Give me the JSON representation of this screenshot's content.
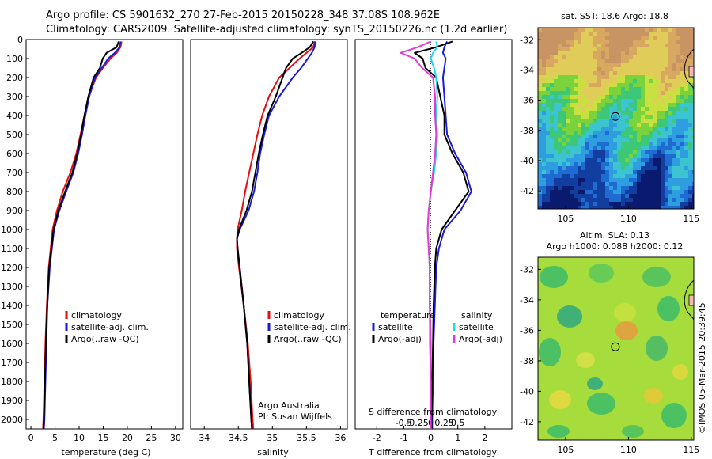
{
  "header": {
    "line1": "Argo profile: CS 5901632_270 27-Feb-2015 20150228_348 37.08S 108.962E",
    "line2": "Climatology: CARS2009. Satellite-adjusted climatology: synTS_20150226.nc (1.2d earlier)"
  },
  "colors": {
    "climatology": "#e01010",
    "satellite": "#1a1adc",
    "argo": "#000000",
    "satellite_salinity": "#22d8e8",
    "argo_salinity": "#e23ad6"
  },
  "depth_axis": {
    "ylim": [
      0,
      2050
    ],
    "ticks": [
      0,
      100,
      200,
      300,
      400,
      500,
      600,
      700,
      800,
      900,
      1000,
      1100,
      1200,
      1300,
      1400,
      1500,
      1600,
      1700,
      1800,
      1900,
      2000
    ]
  },
  "chart_data": [
    {
      "type": "line",
      "name": "temperature",
      "xlabel": "temperature (deg C)",
      "xlim": [
        -1,
        31.5
      ],
      "xticks": [
        0,
        5,
        10,
        15,
        20,
        25,
        30
      ],
      "legend": [
        "climatology",
        "satellite-adj. clim.",
        "Argo(..raw -QC)"
      ],
      "depth": [
        10,
        40,
        70,
        100,
        150,
        200,
        300,
        400,
        500,
        600,
        700,
        800,
        900,
        1000,
        1200,
        1400,
        1600,
        1800,
        2000,
        2050
      ],
      "series": [
        {
          "name": "climatology",
          "values": [
            18.8,
            18.6,
            17.8,
            16.5,
            14.9,
            13.5,
            12.0,
            11.1,
            10.3,
            9.4,
            8.2,
            6.6,
            5.4,
            4.5,
            3.7,
            3.3,
            3.0,
            2.8,
            2.6,
            2.5
          ]
        },
        {
          "name": "satellite-adj. clim.",
          "values": [
            18.6,
            18.4,
            17.4,
            16.0,
            14.7,
            13.3,
            12.1,
            11.3,
            10.6,
            9.8,
            8.8,
            7.3,
            5.9,
            4.8,
            3.9,
            3.4,
            3.2,
            3.0,
            2.8,
            2.7
          ]
        },
        {
          "name": "Argo(..raw -QC)",
          "values": [
            18.2,
            17.8,
            15.7,
            14.9,
            14.3,
            13.0,
            11.9,
            11.1,
            10.4,
            9.6,
            8.6,
            7.1,
            5.7,
            4.7,
            3.8,
            3.4,
            3.1,
            2.9,
            2.7,
            2.6
          ]
        }
      ]
    },
    {
      "type": "line",
      "name": "salinity",
      "xlabel": "salinity",
      "xlim": [
        33.8,
        36.1
      ],
      "xticks": [
        34,
        34.5,
        35,
        35.5,
        36
      ],
      "legend": [
        "climatology",
        "satellite-adj. clim.",
        "Argo(..raw -QC)"
      ],
      "credit": [
        "Argo Australia",
        "PI: Susan Wijffels"
      ],
      "depth": [
        10,
        40,
        70,
        100,
        150,
        200,
        300,
        400,
        500,
        600,
        700,
        800,
        900,
        1000,
        1050,
        1100,
        1200,
        1400,
        1600,
        1800,
        2000,
        2050
      ],
      "series": [
        {
          "name": "climatology",
          "values": [
            35.62,
            35.6,
            35.5,
            35.4,
            35.25,
            35.1,
            34.95,
            34.85,
            34.78,
            34.72,
            34.66,
            34.6,
            34.55,
            34.49,
            34.48,
            34.48,
            34.51,
            34.58,
            34.64,
            34.68,
            34.71,
            34.72
          ]
        },
        {
          "name": "satellite-adj. clim.",
          "values": [
            35.63,
            35.62,
            35.58,
            35.52,
            35.42,
            35.3,
            35.1,
            34.95,
            34.88,
            34.82,
            34.78,
            34.73,
            34.65,
            34.52,
            34.48,
            34.49,
            34.52,
            34.58,
            34.63,
            34.66,
            34.69,
            34.7
          ]
        },
        {
          "name": "Argo(..raw -QC)",
          "values": [
            35.6,
            35.55,
            35.43,
            35.3,
            35.2,
            35.15,
            35.05,
            34.93,
            34.86,
            34.8,
            34.75,
            34.7,
            34.62,
            34.51,
            34.48,
            34.49,
            34.52,
            34.58,
            34.63,
            34.66,
            34.69,
            34.7
          ]
        }
      ]
    },
    {
      "type": "line",
      "name": "difference",
      "xlabel": "T difference from climatology",
      "xlabel_top": "S difference from climatology",
      "xlim": [
        -2.8,
        3.0
      ],
      "xticks": [
        -2,
        -1,
        0,
        1,
        2
      ],
      "s_ticks": [
        -0.5,
        -0.25,
        0,
        0.25,
        0.5
      ],
      "legend_headers": [
        "temperature",
        "salinity"
      ],
      "legend": [
        "satellite",
        "Argo(-adj)",
        "satellite",
        "Argo(-adj)"
      ],
      "depth": [
        10,
        40,
        70,
        100,
        150,
        200,
        300,
        400,
        500,
        600,
        700,
        800,
        900,
        1000,
        1100,
        1200,
        1400,
        1600,
        1800,
        2000,
        2050
      ],
      "series": [
        {
          "name": "satellite",
          "values": [
            0.6,
            0.5,
            0.45,
            0.55,
            0.5,
            0.45,
            0.5,
            0.55,
            0.6,
            0.9,
            1.3,
            1.5,
            1.1,
            0.5,
            0.3,
            0.2,
            0.15,
            0.1,
            0.08,
            0.05,
            0.05
          ]
        },
        {
          "name": "Argo(-adj)",
          "values": [
            0.8,
            0.2,
            -0.6,
            -0.3,
            -0.2,
            0.2,
            0.35,
            0.5,
            0.5,
            0.8,
            1.2,
            1.4,
            0.9,
            0.4,
            0.2,
            0.15,
            0.1,
            0.08,
            0.05,
            0.03,
            0.03
          ]
        },
        {
          "name": "satellite",
          "values": [
            0.05,
            0.06,
            0.02,
            0.0,
            0.03,
            0.05,
            0.06,
            0.05,
            0.06,
            0.05,
            0.03,
            0.0,
            -0.02,
            -0.03,
            -0.02,
            -0.01,
            -0.01,
            -0.01,
            0.0,
            0.0,
            0.0
          ]
        },
        {
          "name": "Argo(-adj)",
          "values": [
            0.0,
            -0.12,
            -0.28,
            -0.15,
            -0.08,
            0.02,
            0.04,
            0.04,
            0.05,
            0.04,
            0.02,
            0.0,
            -0.02,
            -0.03,
            -0.02,
            -0.01,
            -0.01,
            0.0,
            0.0,
            0.0,
            0.0
          ]
        }
      ]
    },
    {
      "type": "heatmap",
      "name": "sst-map",
      "title": "sat. SST: 18.6 Argo: 18.8",
      "xlim": [
        102.8,
        115.2
      ],
      "ylim": [
        -43.2,
        -31.2
      ],
      "xticks": [
        105,
        110,
        115
      ],
      "yticks": [
        -32,
        -34,
        -36,
        -38,
        -40,
        -42
      ],
      "marker": [
        108.962,
        -37.08
      ]
    },
    {
      "type": "heatmap",
      "name": "sla-map",
      "title_lines": [
        "Altim. SLA: 0.13",
        "Argo h1000: 0.088 h2000: 0.12"
      ],
      "xlim": [
        102.8,
        115.2
      ],
      "ylim": [
        -43.2,
        -31.2
      ],
      "xticks": [
        105,
        110,
        115
      ],
      "yticks": [
        -32,
        -34,
        -36,
        -38,
        -40,
        -42
      ],
      "marker": [
        108.962,
        -37.08
      ],
      "credit": "©IMOS 05-Mar-2015 20:39:45"
    }
  ]
}
